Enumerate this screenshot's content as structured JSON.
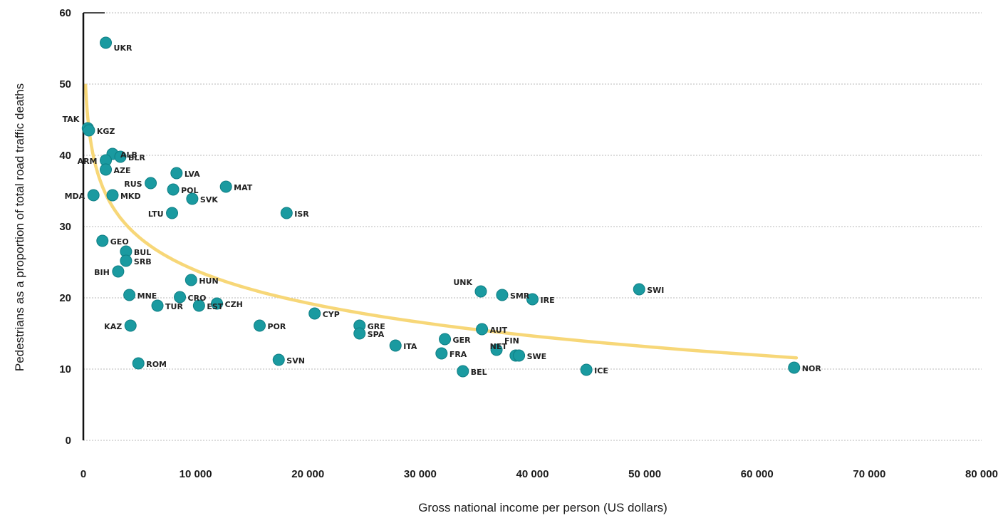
{
  "chart_data": {
    "type": "scatter",
    "title": "",
    "xlabel": "Gross national income per person (US dollars)",
    "ylabel": "Pedestrians as a proportion of total road traffic deaths",
    "xlim": [
      0,
      80000
    ],
    "ylim": [
      0,
      60
    ],
    "x_ticks": [
      0,
      10000,
      20000,
      30000,
      40000,
      50000,
      60000,
      70000,
      80000
    ],
    "x_tick_labels": [
      "0",
      "10 000",
      "20 000",
      "30 000",
      "40 000",
      "50 000",
      "60 000",
      "70 000",
      "80 000"
    ],
    "y_ticks": [
      0,
      10,
      20,
      30,
      40,
      50,
      60
    ],
    "y_tick_labels": [
      "0",
      "10",
      "20",
      "30",
      "40",
      "50",
      "60"
    ],
    "grid": "horizontal dotted",
    "colors": {
      "point": "#1a9aa0",
      "trend": "#f7d778",
      "axis": "#111111"
    },
    "points": [
      {
        "label": "UKR",
        "x": 2000,
        "y": 55.8
      },
      {
        "label": "TAK",
        "x": 400,
        "y": 43.8
      },
      {
        "label": "KGZ",
        "x": 500,
        "y": 43.5
      },
      {
        "label": "ALB",
        "x": 2600,
        "y": 40.2
      },
      {
        "label": "BLR",
        "x": 3300,
        "y": 39.8
      },
      {
        "label": "ARM",
        "x": 2000,
        "y": 39.3
      },
      {
        "label": "AZE",
        "x": 2000,
        "y": 38.0
      },
      {
        "label": "MDA",
        "x": 900,
        "y": 34.4
      },
      {
        "label": "MKD",
        "x": 2600,
        "y": 34.4
      },
      {
        "label": "RUS",
        "x": 6000,
        "y": 36.1
      },
      {
        "label": "LVA",
        "x": 8300,
        "y": 37.5
      },
      {
        "label": "POL",
        "x": 8000,
        "y": 35.2
      },
      {
        "label": "SVK",
        "x": 9700,
        "y": 33.9
      },
      {
        "label": "MAT",
        "x": 12700,
        "y": 35.6
      },
      {
        "label": "LTU",
        "x": 7900,
        "y": 31.9
      },
      {
        "label": "ISR",
        "x": 18100,
        "y": 31.9
      },
      {
        "label": "GEO",
        "x": 1700,
        "y": 28.0
      },
      {
        "label": "BUL",
        "x": 3800,
        "y": 26.5
      },
      {
        "label": "SRB",
        "x": 3800,
        "y": 25.2
      },
      {
        "label": "BIH",
        "x": 3100,
        "y": 23.7
      },
      {
        "label": "HUN",
        "x": 9600,
        "y": 22.5
      },
      {
        "label": "MNE",
        "x": 4100,
        "y": 20.4
      },
      {
        "label": "CRO",
        "x": 8600,
        "y": 20.1
      },
      {
        "label": "TUR",
        "x": 6600,
        "y": 18.9
      },
      {
        "label": "EST",
        "x": 10300,
        "y": 18.9
      },
      {
        "label": "CZH",
        "x": 11900,
        "y": 19.2
      },
      {
        "label": "KAZ",
        "x": 4200,
        "y": 16.1
      },
      {
        "label": "POR",
        "x": 15700,
        "y": 16.1
      },
      {
        "label": "CYP",
        "x": 20600,
        "y": 17.8
      },
      {
        "label": "GRE",
        "x": 24600,
        "y": 16.1
      },
      {
        "label": "SPA",
        "x": 24600,
        "y": 15.0
      },
      {
        "label": "ROM",
        "x": 4900,
        "y": 10.8
      },
      {
        "label": "SVN",
        "x": 17400,
        "y": 11.3
      },
      {
        "label": "ITA",
        "x": 27800,
        "y": 13.3
      },
      {
        "label": "GER",
        "x": 32200,
        "y": 14.2
      },
      {
        "label": "FRA",
        "x": 31900,
        "y": 12.2
      },
      {
        "label": "BEL",
        "x": 33800,
        "y": 9.7
      },
      {
        "label": "AUT",
        "x": 35500,
        "y": 15.6
      },
      {
        "label": "UNK",
        "x": 35400,
        "y": 20.9
      },
      {
        "label": "SMR",
        "x": 37300,
        "y": 20.4
      },
      {
        "label": "IRE",
        "x": 40000,
        "y": 19.8
      },
      {
        "label": "FIN",
        "x": 36800,
        "y": 12.7
      },
      {
        "label": "NET",
        "x": 38500,
        "y": 11.9
      },
      {
        "label": "SWE",
        "x": 38800,
        "y": 11.9
      },
      {
        "label": "ICE",
        "x": 44800,
        "y": 9.9
      },
      {
        "label": "SWI",
        "x": 49500,
        "y": 21.2
      },
      {
        "label": "NOR",
        "x": 63300,
        "y": 10.2
      }
    ],
    "trendline": {
      "type": "logarithmic",
      "x_range": [
        200,
        63500
      ]
    }
  }
}
